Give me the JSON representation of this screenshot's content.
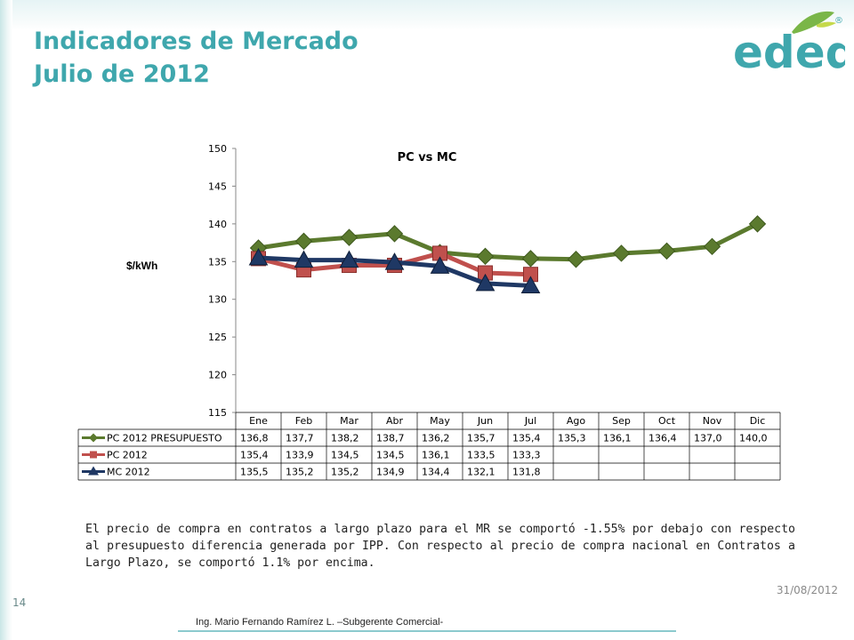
{
  "slide": {
    "title_line1": "Indicadores de Mercado",
    "title_line2": "Julio de 2012",
    "logo_text": "edeq",
    "registered_mark": "®",
    "paragraph": "El precio de compra en contratos a largo plazo para el MR se comportó -1.55% por debajo con respecto al presupuesto diferencia generada por IPP.  Con respecto al precio de compra nacional en Contratos a Largo Plazo, se comportó 1.1% por encima.",
    "date": "31/08/2012",
    "page_number": "14",
    "footer": "Ing. Mario Fernando Ramírez  L. –Subgerente Comercial-",
    "colors": {
      "title": "#3fa7ad",
      "pc_presupuesto": "#5b7a2e",
      "pc_2012": "#c0504d",
      "mc_2012": "#1f3864"
    }
  },
  "chart_data": {
    "type": "line",
    "title": "PC vs MC",
    "ylabel": "$/kWh",
    "xlabel": "",
    "ylim": [
      115,
      150
    ],
    "yticks": [
      150,
      145,
      140,
      135,
      130,
      125,
      120,
      115
    ],
    "categories": [
      "Ene",
      "Feb",
      "Mar",
      "Abr",
      "May",
      "Jun",
      "Jul",
      "Ago",
      "Sep",
      "Oct",
      "Nov",
      "Dic"
    ],
    "grid": false,
    "legend": "data-table",
    "series": [
      {
        "name": "PC 2012 PRESUPUESTO",
        "color": "#5b7a2e",
        "marker": "diamond",
        "values": [
          136.8,
          137.7,
          138.2,
          138.7,
          136.2,
          135.7,
          135.4,
          135.3,
          136.1,
          136.4,
          137.0,
          140.0
        ],
        "labels": [
          "136,8",
          "137,7",
          "138,2",
          "138,7",
          "136,2",
          "135,7",
          "135,4",
          "135,3",
          "136,1",
          "136,4",
          "137,0",
          "140,0"
        ]
      },
      {
        "name": "PC 2012",
        "color": "#c0504d",
        "marker": "square",
        "values": [
          135.4,
          133.9,
          134.5,
          134.5,
          136.1,
          133.5,
          133.3,
          null,
          null,
          null,
          null,
          null
        ],
        "labels": [
          "135,4",
          "133,9",
          "134,5",
          "134,5",
          "136,1",
          "133,5",
          "133,3",
          "",
          "",
          "",
          "",
          ""
        ]
      },
      {
        "name": "MC 2012",
        "color": "#1f3864",
        "marker": "triangle",
        "values": [
          135.5,
          135.2,
          135.2,
          134.9,
          134.4,
          132.1,
          131.8,
          null,
          null,
          null,
          null,
          null
        ],
        "labels": [
          "135,5",
          "135,2",
          "135,2",
          "134,9",
          "134,4",
          "132,1",
          "131,8",
          "",
          "",
          "",
          "",
          ""
        ]
      }
    ]
  }
}
